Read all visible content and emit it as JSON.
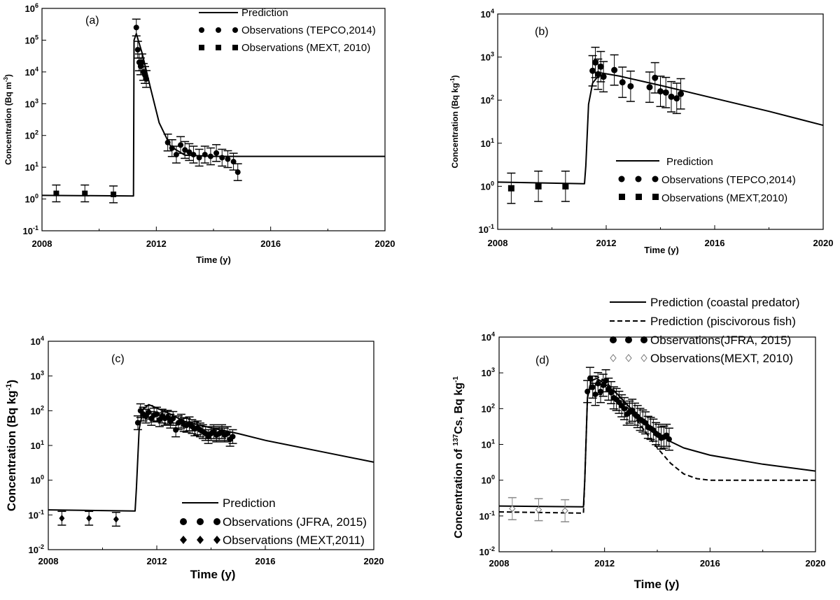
{
  "chart_data": [
    {
      "type": "line",
      "panel_label": "(a)",
      "xlabel": "Time (y)",
      "ylabel": "Concentration (Bq m-3)",
      "ylabel_base": "Concentration (Bq m",
      "ylabel_sup": "-3",
      "ylabel_end": ")",
      "yscale": "log",
      "xlim": [
        2008,
        2020
      ],
      "ylim": [
        0.1,
        1000000
      ],
      "xticks": [
        "2008",
        "2012",
        "2016",
        "2020"
      ],
      "yticks": [
        {
          "base": "10",
          "exp": "-1"
        },
        {
          "base": "10",
          "exp": "0"
        },
        {
          "base": "10",
          "exp": "1"
        },
        {
          "base": "10",
          "exp": "2"
        },
        {
          "base": "10",
          "exp": "3"
        },
        {
          "base": "10",
          "exp": "4"
        },
        {
          "base": "10",
          "exp": "5"
        },
        {
          "base": "10",
          "exp": "6"
        }
      ],
      "legend": [
        {
          "kind": "line",
          "label": "Prediction"
        },
        {
          "kind": "dot",
          "label": "Observations (TEPCO,2014)"
        },
        {
          "kind": "square",
          "label": "Observations (MEXT, 2010)"
        }
      ],
      "series": [
        {
          "name": "Prediction",
          "style": "solid",
          "x": [
            2008.0,
            2011.2,
            2011.22,
            2011.3,
            2011.5,
            2011.8,
            2012.1,
            2012.5,
            2013.0,
            2014.0,
            2015.0,
            2020.0
          ],
          "y": [
            1.3,
            1.25,
            100000,
            160000,
            40000,
            3000,
            250,
            45,
            24,
            22,
            22,
            22
          ]
        },
        {
          "name": "Observations (TEPCO,2014)",
          "marker": "dot",
          "x": [
            2011.3,
            2011.35,
            2011.4,
            2011.45,
            2011.5,
            2011.55,
            2011.6,
            2011.65,
            2012.4,
            2012.55,
            2012.7,
            2012.85,
            2013.0,
            2013.15,
            2013.3,
            2013.5,
            2013.7,
            2013.9,
            2014.1,
            2014.3,
            2014.5,
            2014.7,
            2014.85
          ],
          "y": [
            250000,
            50000,
            20000,
            15000,
            20000,
            10000,
            8000,
            6000,
            60,
            40,
            25,
            50,
            35,
            30,
            25,
            20,
            25,
            22,
            28,
            20,
            18,
            15,
            7
          ]
        },
        {
          "name": "Observations (MEXT, 2010)",
          "marker": "square",
          "x": [
            2008.5,
            2009.5,
            2010.5
          ],
          "y": [
            1.5,
            1.5,
            1.4
          ]
        }
      ]
    },
    {
      "type": "line",
      "panel_label": "(b)",
      "xlabel": "Time (y)",
      "ylabel": "Concentration (Bq kg-1)",
      "ylabel_base": "Concentration (Bq kg",
      "ylabel_sup": "-1",
      "ylabel_end": ")",
      "yscale": "log",
      "xlim": [
        2008,
        2020
      ],
      "ylim": [
        0.1,
        10000
      ],
      "xticks": [
        "2008",
        "2012",
        "2016",
        "2020"
      ],
      "yticks": [
        {
          "base": "10",
          "exp": "-1"
        },
        {
          "base": "10",
          "exp": "0"
        },
        {
          "base": "10",
          "exp": "1"
        },
        {
          "base": "10",
          "exp": "2"
        },
        {
          "base": "10",
          "exp": "3"
        },
        {
          "base": "10",
          "exp": "4"
        }
      ],
      "legend": [
        {
          "kind": "line",
          "label": "Prediction"
        },
        {
          "kind": "dot",
          "label": "Observations (TEPCO,2014)"
        },
        {
          "kind": "square",
          "label": "Observations (MEXT,2010)"
        }
      ],
      "series": [
        {
          "name": "Prediction",
          "style": "solid",
          "x": [
            2008.0,
            2011.2,
            2011.25,
            2011.35,
            2011.5,
            2011.8,
            2012.5,
            2014.0,
            2016.0,
            2018.0,
            2020.0
          ],
          "y": [
            1.25,
            1.15,
            3,
            80,
            250,
            430,
            360,
            220,
            110,
            55,
            26
          ]
        },
        {
          "name": "Observations (TEPCO,2014)",
          "marker": "dot",
          "x": [
            2011.5,
            2011.6,
            2011.7,
            2011.8,
            2011.9,
            2012.3,
            2012.6,
            2012.9,
            2013.6,
            2013.8,
            2014.0,
            2014.2,
            2014.4,
            2014.6,
            2014.75
          ],
          "y": [
            480,
            750,
            400,
            600,
            350,
            500,
            260,
            210,
            200,
            330,
            160,
            150,
            120,
            110,
            140
          ]
        },
        {
          "name": "Observations (MEXT,2010)",
          "marker": "square",
          "x": [
            2008.5,
            2009.5,
            2010.5
          ],
          "y": [
            0.9,
            1.0,
            1.0
          ]
        }
      ]
    },
    {
      "type": "line",
      "panel_label": "(c)",
      "xlabel": "Time (y)",
      "ylabel": "Concentration (Bq kg-1)",
      "ylabel_base": "Concentration (Bq kg",
      "ylabel_sup": "-1",
      "ylabel_end": ")",
      "yscale": "log",
      "xlim": [
        2008,
        2020
      ],
      "ylim": [
        0.01,
        10000
      ],
      "xticks": [
        "2008",
        "2012",
        "2016",
        "2020"
      ],
      "yticks": [
        {
          "base": "10",
          "exp": "-2"
        },
        {
          "base": "10",
          "exp": "-1"
        },
        {
          "base": "10",
          "exp": "0"
        },
        {
          "base": "10",
          "exp": "1"
        },
        {
          "base": "10",
          "exp": "2"
        },
        {
          "base": "10",
          "exp": "3"
        },
        {
          "base": "10",
          "exp": "4"
        }
      ],
      "legend": [
        {
          "kind": "line",
          "label": "Prediction"
        },
        {
          "kind": "dot",
          "label": "Observations (JFRA, 2015)"
        },
        {
          "kind": "diamond",
          "label": "Observations (MEXT,2011)"
        }
      ],
      "series": [
        {
          "name": "Prediction",
          "style": "solid",
          "x": [
            2008.0,
            2011.2,
            2011.25,
            2011.35,
            2011.5,
            2011.7,
            2012.0,
            2012.5,
            2013.0,
            2014.0,
            2015.0,
            2016.0,
            2018.0,
            2020.0
          ],
          "y": [
            0.14,
            0.13,
            0.6,
            30,
            110,
            150,
            120,
            80,
            50,
            32,
            22,
            14,
            6.8,
            3.3
          ]
        },
        {
          "name": "Observations (JFRA, 2015)",
          "marker": "dot",
          "x": [
            2011.3,
            2011.4,
            2011.5,
            2011.6,
            2011.7,
            2011.8,
            2011.9,
            2012.0,
            2012.1,
            2012.2,
            2012.3,
            2012.4,
            2012.5,
            2012.6,
            2012.7,
            2012.8,
            2012.9,
            2013.0,
            2013.1,
            2013.2,
            2013.3,
            2013.4,
            2013.5,
            2013.6,
            2013.7,
            2013.8,
            2013.9,
            2014.0,
            2014.1,
            2014.2,
            2014.3,
            2014.4,
            2014.5,
            2014.6,
            2014.7,
            2014.8
          ],
          "y": [
            45,
            100,
            80,
            70,
            90,
            60,
            75,
            80,
            55,
            70,
            60,
            65,
            50,
            60,
            28,
            45,
            50,
            40,
            38,
            42,
            35,
            30,
            32,
            28,
            25,
            22,
            18,
            22,
            25,
            20,
            22,
            25,
            20,
            22,
            15,
            18
          ]
        },
        {
          "name": "Observations (MEXT,2011)",
          "marker": "diamond",
          "x": [
            2008.5,
            2009.5,
            2010.5
          ],
          "y": [
            0.08,
            0.08,
            0.075
          ]
        }
      ]
    },
    {
      "type": "line",
      "panel_label": "(d)",
      "xlabel": "Time (y)",
      "ylabel": "Concentration of 137Cs, Bq kg-1",
      "ylabel_base": "Concentration of ",
      "ylabel_iso": "137",
      "ylabel_mid": "Cs, Bq kg",
      "ylabel_sup": "-1",
      "yscale": "log",
      "xlim": [
        2008,
        2020
      ],
      "ylim": [
        0.01,
        10000
      ],
      "xticks": [
        "2008",
        "2012",
        "2016",
        "2020"
      ],
      "yticks": [
        {
          "base": "10",
          "exp": "-2"
        },
        {
          "base": "10",
          "exp": "-1"
        },
        {
          "base": "10",
          "exp": "0"
        },
        {
          "base": "10",
          "exp": "1"
        },
        {
          "base": "10",
          "exp": "2"
        },
        {
          "base": "10",
          "exp": "3"
        },
        {
          "base": "10",
          "exp": "4"
        }
      ],
      "legend": [
        {
          "kind": "line",
          "label": "Prediction (coastal predator)"
        },
        {
          "kind": "dashed",
          "label": "Prediction (piscivorous fish)"
        },
        {
          "kind": "dot",
          "label": "Observations(JFRA, 2015)"
        },
        {
          "kind": "open-diamond",
          "label": "Observations(MEXT, 2010)"
        }
      ],
      "series": [
        {
          "name": "Prediction (coastal predator)",
          "style": "solid",
          "x": [
            2008.0,
            2011.2,
            2011.25,
            2011.35,
            2011.5,
            2011.7,
            2012.0,
            2012.5,
            2013.0,
            2013.5,
            2014.0,
            2014.5,
            2015.0,
            2016.0,
            2018.0,
            2020.0
          ],
          "y": [
            0.19,
            0.18,
            1,
            200,
            600,
            700,
            500,
            250,
            100,
            45,
            22,
            12,
            8,
            5,
            2.8,
            1.8
          ]
        },
        {
          "name": "Prediction (piscivorous fish)",
          "style": "dashed",
          "x": [
            2008.0,
            2011.2,
            2011.25,
            2011.35,
            2011.5,
            2011.7,
            2012.0,
            2012.5,
            2013.0,
            2013.5,
            2014.0,
            2014.5,
            2015.0,
            2015.5,
            2016.0,
            2017.0,
            2020.0
          ],
          "y": [
            0.13,
            0.12,
            1,
            200,
            700,
            800,
            600,
            250,
            80,
            25,
            8,
            3,
            1.5,
            1.1,
            1.0,
            1.0,
            1.0
          ]
        },
        {
          "name": "Observations(JFRA, 2015)",
          "marker": "dot",
          "x": [
            2011.35,
            2011.45,
            2011.55,
            2011.65,
            2011.75,
            2011.85,
            2011.95,
            2012.05,
            2012.15,
            2012.25,
            2012.35,
            2012.45,
            2012.55,
            2012.65,
            2012.75,
            2012.85,
            2012.95,
            2013.05,
            2013.15,
            2013.25,
            2013.35,
            2013.45,
            2013.55,
            2013.65,
            2013.75,
            2013.85,
            2013.95,
            2014.05,
            2014.15,
            2014.25,
            2014.35,
            2014.45
          ],
          "y": [
            300,
            700,
            400,
            250,
            500,
            300,
            450,
            600,
            350,
            280,
            200,
            180,
            150,
            120,
            100,
            70,
            80,
            90,
            70,
            60,
            50,
            45,
            40,
            30,
            28,
            25,
            20,
            18,
            15,
            16,
            18,
            14
          ]
        },
        {
          "name": "Observations(MEXT, 2010)",
          "marker": "open-diamond",
          "x": [
            2008.5,
            2009.5,
            2010.5
          ],
          "y": [
            0.16,
            0.15,
            0.14
          ]
        }
      ]
    }
  ]
}
